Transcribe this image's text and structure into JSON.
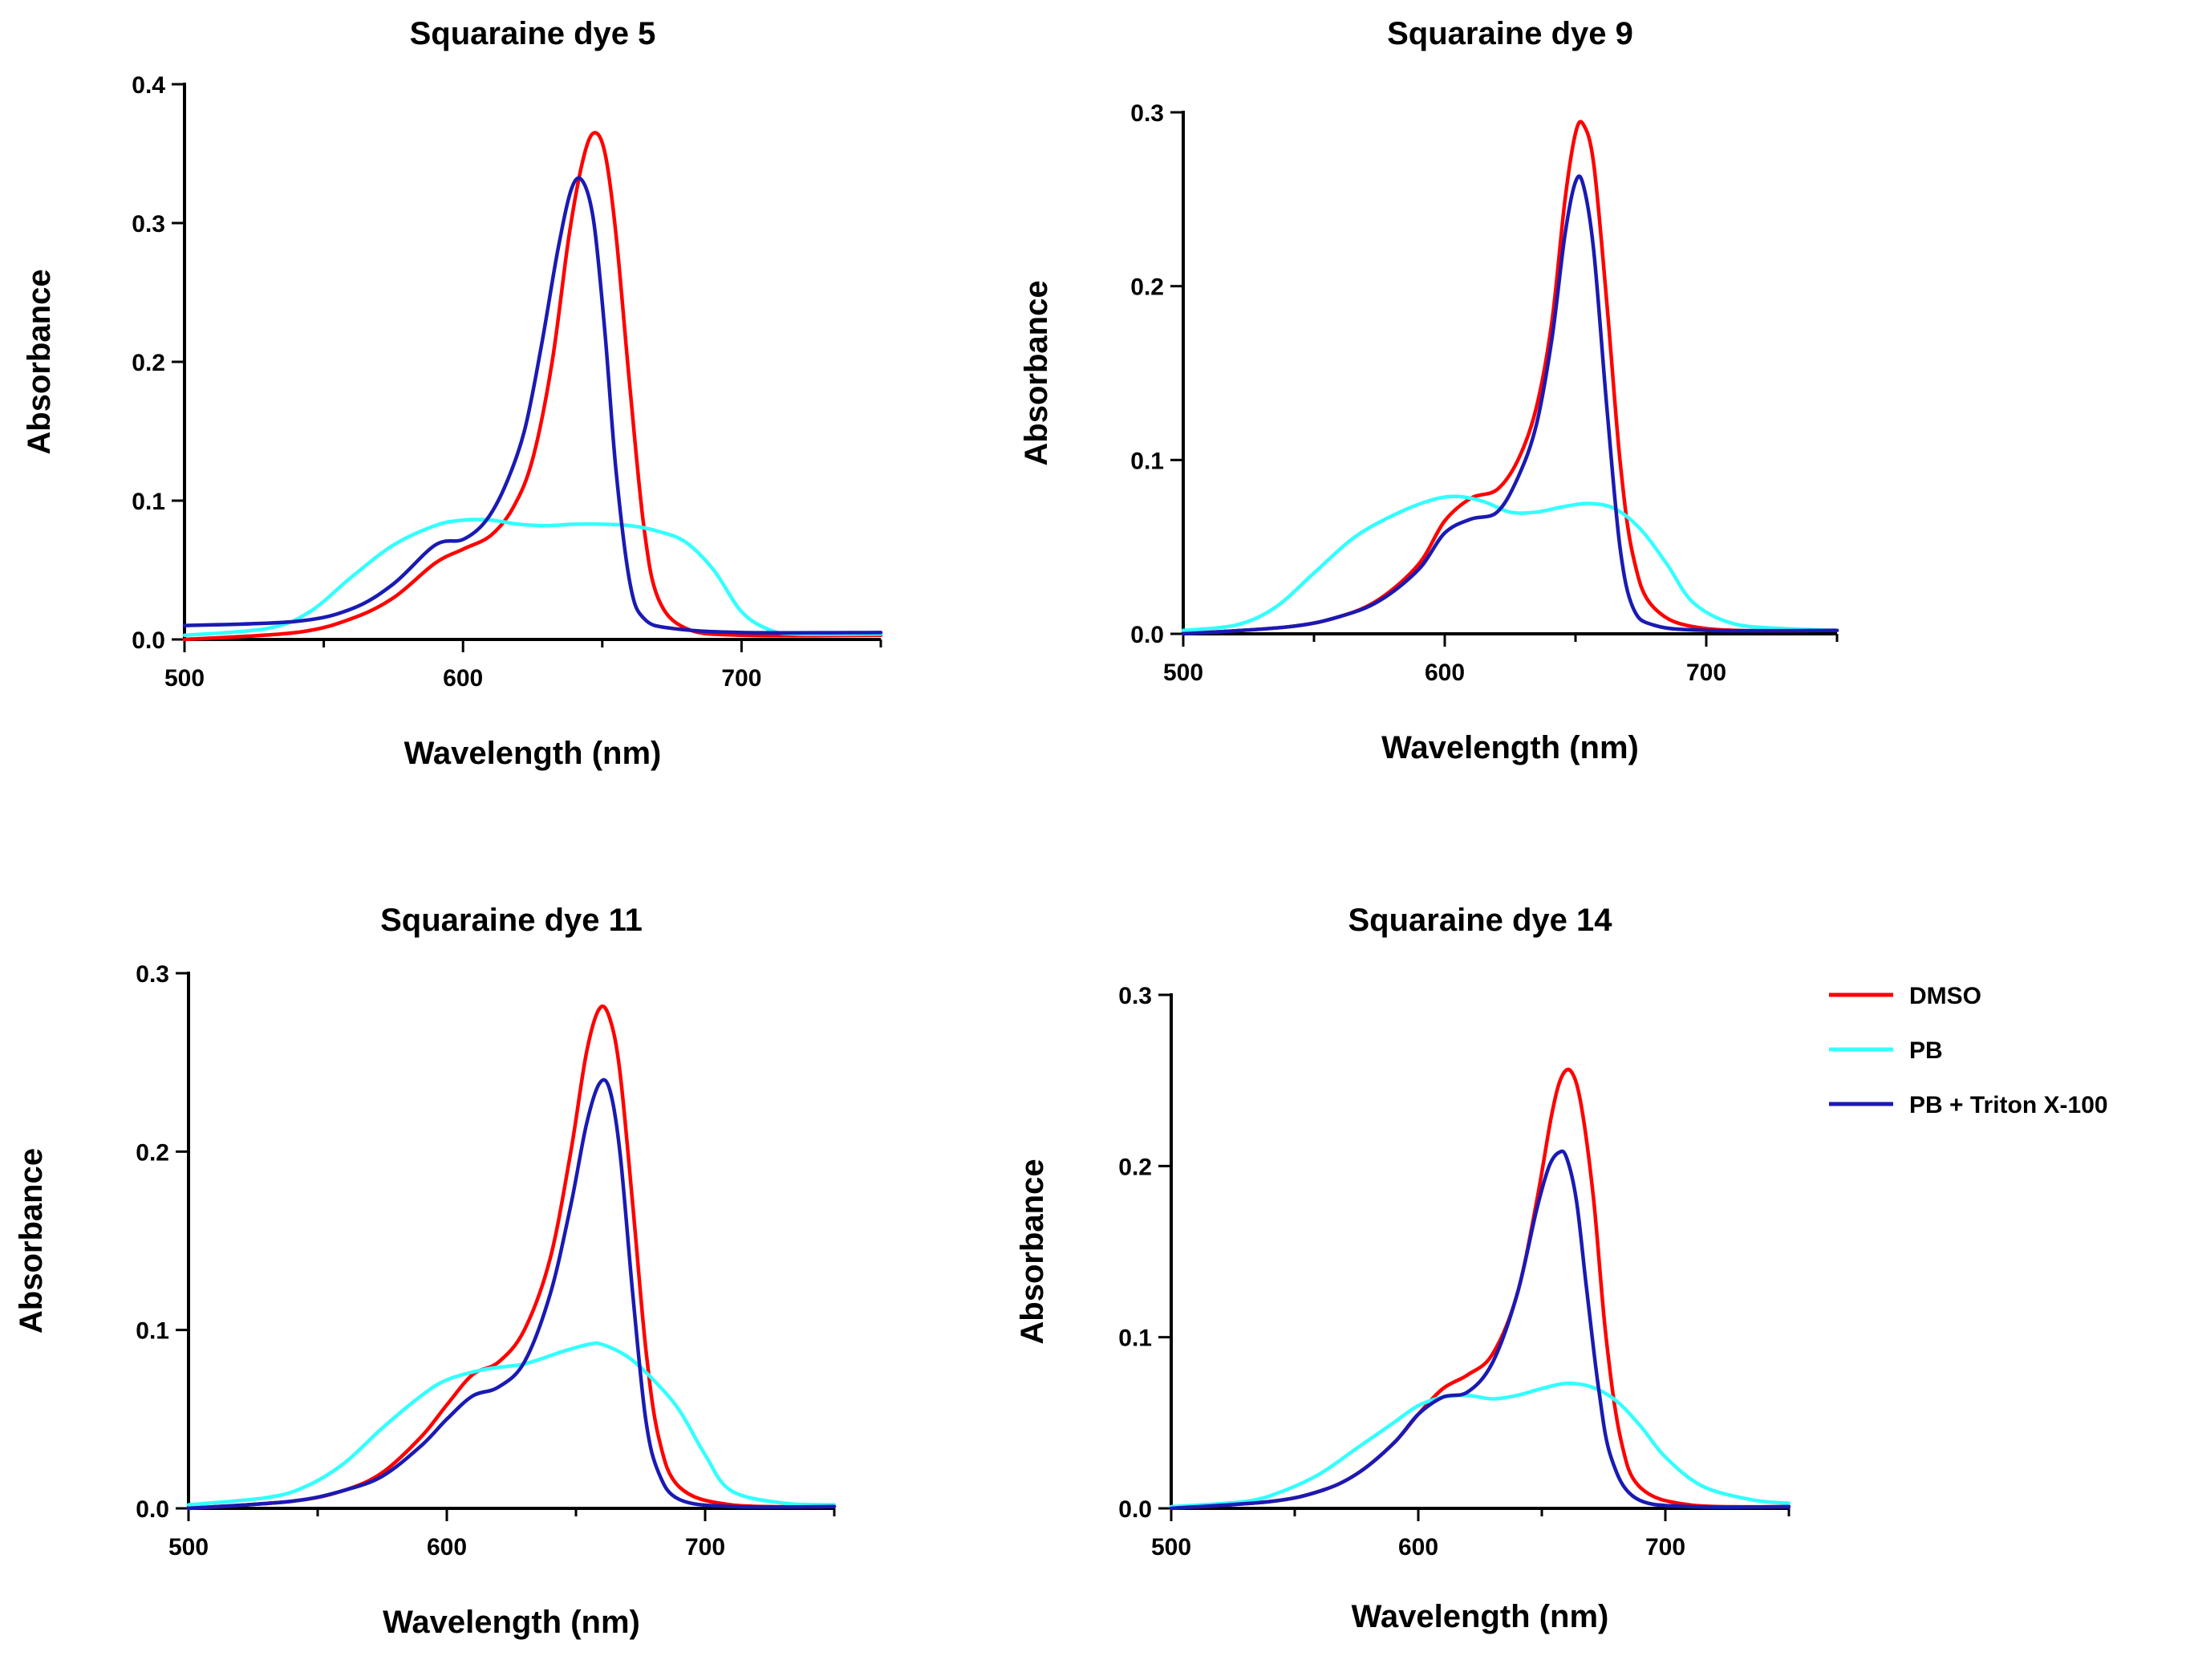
{
  "legend": {
    "entries": [
      {
        "name": "DMSO",
        "color": "#ff0000"
      },
      {
        "name": "PB",
        "color": "#33ffff"
      },
      {
        "name": "PB + Triton X-100",
        "color": "#1a1ab3"
      }
    ],
    "placement": "right of bottom-right chart"
  },
  "chart_data": [
    {
      "type": "line",
      "title": "Squaraine dye 5",
      "xlabel": "Wavelength (nm)",
      "ylabel": "Absorbance",
      "xlim": [
        500,
        750
      ],
      "ylim": [
        0,
        0.4
      ],
      "xticks": [
        500,
        600,
        700
      ],
      "xtick_labels": [
        "500",
        "600",
        "700"
      ],
      "yticks": [
        0,
        0.1,
        0.2,
        0.3,
        0.4
      ],
      "ytick_labels": [
        "0.0",
        "0.1",
        "0.2",
        "0.3",
        "0.4"
      ],
      "grid": false,
      "series": [
        {
          "name": "DMSO",
          "color": "#ff0000",
          "x": [
            500,
            540,
            560,
            575,
            590,
            600,
            610,
            618,
            625,
            632,
            638,
            643,
            647,
            651,
            655,
            660,
            665,
            670,
            680,
            700,
            750
          ],
          "y": [
            0.0,
            0.005,
            0.015,
            0.03,
            0.055,
            0.065,
            0.075,
            0.095,
            0.13,
            0.2,
            0.29,
            0.345,
            0.365,
            0.35,
            0.29,
            0.18,
            0.08,
            0.03,
            0.008,
            0.003,
            0.003
          ]
        },
        {
          "name": "PB",
          "color": "#33ffff",
          "x": [
            500,
            530,
            545,
            560,
            575,
            590,
            600,
            610,
            620,
            630,
            640,
            650,
            660,
            670,
            680,
            690,
            700,
            710,
            720,
            750
          ],
          "y": [
            0.003,
            0.008,
            0.02,
            0.045,
            0.068,
            0.082,
            0.086,
            0.086,
            0.083,
            0.082,
            0.083,
            0.083,
            0.082,
            0.078,
            0.07,
            0.05,
            0.02,
            0.007,
            0.004,
            0.004
          ]
        },
        {
          "name": "PB + Triton X-100",
          "color": "#1a1ab3",
          "x": [
            500,
            540,
            560,
            575,
            590,
            600,
            608,
            615,
            622,
            628,
            634,
            639,
            643,
            647,
            651,
            655,
            660,
            665,
            675,
            700,
            750
          ],
          "y": [
            0.01,
            0.013,
            0.022,
            0.04,
            0.068,
            0.072,
            0.085,
            0.11,
            0.15,
            0.21,
            0.28,
            0.325,
            0.33,
            0.3,
            0.22,
            0.12,
            0.04,
            0.015,
            0.008,
            0.005,
            0.005
          ]
        }
      ]
    },
    {
      "type": "line",
      "title": "Squaraine dye 9",
      "xlabel": "Wavelength (nm)",
      "ylabel": "Absorbance",
      "xlim": [
        500,
        750
      ],
      "ylim": [
        0,
        0.3
      ],
      "xticks": [
        500,
        600,
        700
      ],
      "xtick_labels": [
        "500",
        "600",
        "700"
      ],
      "yticks": [
        0,
        0.1,
        0.2,
        0.3
      ],
      "ytick_labels": [
        "0.0",
        "0.1",
        "0.2",
        "0.3"
      ],
      "grid": false,
      "series": [
        {
          "name": "DMSO",
          "color": "#ff0000",
          "x": [
            500,
            540,
            560,
            575,
            590,
            600,
            610,
            620,
            628,
            635,
            641,
            646,
            650,
            653,
            657,
            662,
            667,
            672,
            680,
            700,
            750
          ],
          "y": [
            0.0,
            0.004,
            0.01,
            0.02,
            0.04,
            0.065,
            0.078,
            0.083,
            0.1,
            0.13,
            0.18,
            0.25,
            0.288,
            0.293,
            0.27,
            0.19,
            0.1,
            0.045,
            0.015,
            0.003,
            0.002
          ]
        },
        {
          "name": "PB",
          "color": "#33ffff",
          "x": [
            500,
            520,
            535,
            550,
            565,
            580,
            595,
            605,
            615,
            625,
            635,
            645,
            655,
            665,
            675,
            685,
            695,
            710,
            730,
            750
          ],
          "y": [
            0.002,
            0.005,
            0.015,
            0.035,
            0.055,
            0.068,
            0.077,
            0.079,
            0.076,
            0.07,
            0.07,
            0.073,
            0.075,
            0.072,
            0.06,
            0.04,
            0.018,
            0.006,
            0.003,
            0.002
          ]
        },
        {
          "name": "PB + Triton X-100",
          "color": "#1a1ab3",
          "x": [
            500,
            540,
            560,
            575,
            590,
            600,
            610,
            620,
            628,
            635,
            641,
            646,
            650,
            653,
            657,
            662,
            667,
            672,
            680,
            700,
            750
          ],
          "y": [
            0.0,
            0.004,
            0.01,
            0.019,
            0.037,
            0.058,
            0.066,
            0.07,
            0.09,
            0.12,
            0.17,
            0.23,
            0.26,
            0.258,
            0.22,
            0.13,
            0.05,
            0.015,
            0.005,
            0.002,
            0.002
          ]
        }
      ]
    },
    {
      "type": "line",
      "title": "Squaraine dye 11",
      "xlabel": "Wavelength (nm)",
      "ylabel": "Absorbance",
      "xlim": [
        500,
        750
      ],
      "ylim": [
        0,
        0.3
      ],
      "xticks": [
        500,
        600,
        700
      ],
      "xtick_labels": [
        "500",
        "600",
        "700"
      ],
      "yticks": [
        0,
        0.1,
        0.2,
        0.3
      ],
      "ytick_labels": [
        "0.0",
        "0.1",
        "0.2",
        "0.3"
      ],
      "grid": false,
      "series": [
        {
          "name": "DMSO",
          "color": "#ff0000",
          "x": [
            500,
            540,
            560,
            575,
            590,
            600,
            610,
            620,
            630,
            640,
            648,
            654,
            659,
            663,
            667,
            672,
            677,
            682,
            690,
            710,
            750
          ],
          "y": [
            0.0,
            0.004,
            0.01,
            0.02,
            0.04,
            0.058,
            0.075,
            0.082,
            0.1,
            0.14,
            0.2,
            0.255,
            0.28,
            0.275,
            0.245,
            0.17,
            0.09,
            0.04,
            0.012,
            0.002,
            0.001
          ]
        },
        {
          "name": "PB",
          "color": "#33ffff",
          "x": [
            500,
            530,
            545,
            560,
            575,
            590,
            600,
            615,
            630,
            645,
            655,
            660,
            670,
            680,
            690,
            700,
            710,
            730,
            750
          ],
          "y": [
            0.002,
            0.006,
            0.012,
            0.025,
            0.045,
            0.063,
            0.072,
            0.078,
            0.081,
            0.088,
            0.092,
            0.092,
            0.085,
            0.072,
            0.055,
            0.03,
            0.01,
            0.003,
            0.002
          ]
        },
        {
          "name": "PB + Triton X-100",
          "color": "#1a1ab3",
          "x": [
            500,
            540,
            560,
            575,
            590,
            600,
            610,
            620,
            630,
            640,
            648,
            654,
            659,
            663,
            667,
            672,
            677,
            682,
            690,
            710,
            750
          ],
          "y": [
            0.0,
            0.004,
            0.01,
            0.018,
            0.035,
            0.05,
            0.063,
            0.068,
            0.082,
            0.12,
            0.17,
            0.215,
            0.238,
            0.235,
            0.2,
            0.12,
            0.05,
            0.02,
            0.005,
            0.001,
            0.001
          ]
        }
      ]
    },
    {
      "type": "line",
      "title": "Squaraine dye 14",
      "xlabel": "Wavelength (nm)",
      "ylabel": "Absorbance",
      "xlim": [
        500,
        750
      ],
      "ylim": [
        0,
        0.3
      ],
      "xticks": [
        500,
        600,
        700
      ],
      "xtick_labels": [
        "500",
        "600",
        "700"
      ],
      "yticks": [
        0,
        0.1,
        0.2,
        0.3
      ],
      "ytick_labels": [
        "0.0",
        "0.1",
        "0.2",
        "0.3"
      ],
      "grid": false,
      "series": [
        {
          "name": "DMSO",
          "color": "#ff0000",
          "x": [
            500,
            540,
            560,
            575,
            590,
            600,
            610,
            620,
            630,
            640,
            648,
            654,
            658,
            662,
            666,
            671,
            676,
            682,
            690,
            710,
            750
          ],
          "y": [
            0.0,
            0.004,
            0.01,
            0.02,
            0.038,
            0.055,
            0.07,
            0.078,
            0.09,
            0.125,
            0.18,
            0.23,
            0.252,
            0.255,
            0.235,
            0.18,
            0.1,
            0.04,
            0.012,
            0.002,
            0.001
          ]
        },
        {
          "name": "PB",
          "color": "#33ffff",
          "x": [
            500,
            530,
            545,
            560,
            575,
            590,
            600,
            610,
            620,
            630,
            640,
            650,
            660,
            670,
            680,
            690,
            700,
            715,
            735,
            750
          ],
          "y": [
            0.001,
            0.004,
            0.01,
            0.02,
            0.035,
            0.05,
            0.06,
            0.065,
            0.066,
            0.064,
            0.066,
            0.07,
            0.073,
            0.071,
            0.063,
            0.048,
            0.03,
            0.013,
            0.005,
            0.003
          ]
        },
        {
          "name": "PB + Triton X-100",
          "color": "#1a1ab3",
          "x": [
            500,
            540,
            560,
            575,
            590,
            600,
            610,
            620,
            630,
            640,
            648,
            653,
            657,
            660,
            664,
            668,
            673,
            678,
            688,
            710,
            750
          ],
          "y": [
            0.0,
            0.004,
            0.01,
            0.02,
            0.038,
            0.055,
            0.065,
            0.068,
            0.085,
            0.125,
            0.175,
            0.2,
            0.208,
            0.205,
            0.18,
            0.13,
            0.07,
            0.03,
            0.006,
            0.001,
            0.001
          ]
        }
      ]
    }
  ]
}
